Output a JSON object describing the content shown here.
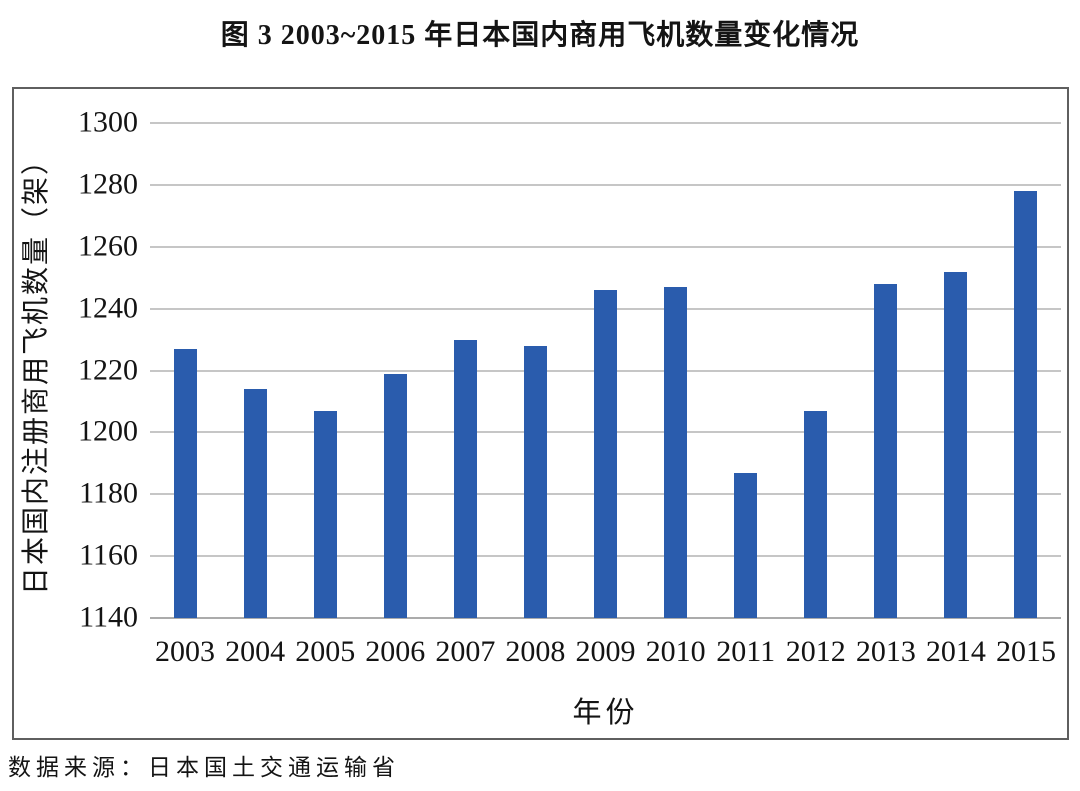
{
  "title": "图 3 2003~2015 年日本国内商用飞机数量变化情况",
  "source": "数据来源：日本国土交通运输省",
  "colors": {
    "bar": "#2A5CAD",
    "gridline": "#c6c6c6",
    "baseline": "#ababab",
    "frame_border": "#5f5f5f"
  },
  "chart_data": {
    "type": "bar",
    "title": "图 3 2003~2015 年日本国内商用飞机数量变化情况",
    "xlabel": "年份",
    "ylabel": "日本国内注册商用飞机数量（架）",
    "categories": [
      "2003",
      "2004",
      "2005",
      "2006",
      "2007",
      "2008",
      "2009",
      "2010",
      "2011",
      "2012",
      "2013",
      "2014",
      "2015"
    ],
    "values": [
      1227,
      1214,
      1207,
      1219,
      1230,
      1228,
      1246,
      1247,
      1187,
      1207,
      1248,
      1252,
      1278
    ],
    "ylim": [
      1140,
      1300
    ],
    "yticks": [
      1300,
      1280,
      1260,
      1240,
      1220,
      1200,
      1180,
      1160,
      1140
    ],
    "grid": true,
    "legend": "none"
  }
}
